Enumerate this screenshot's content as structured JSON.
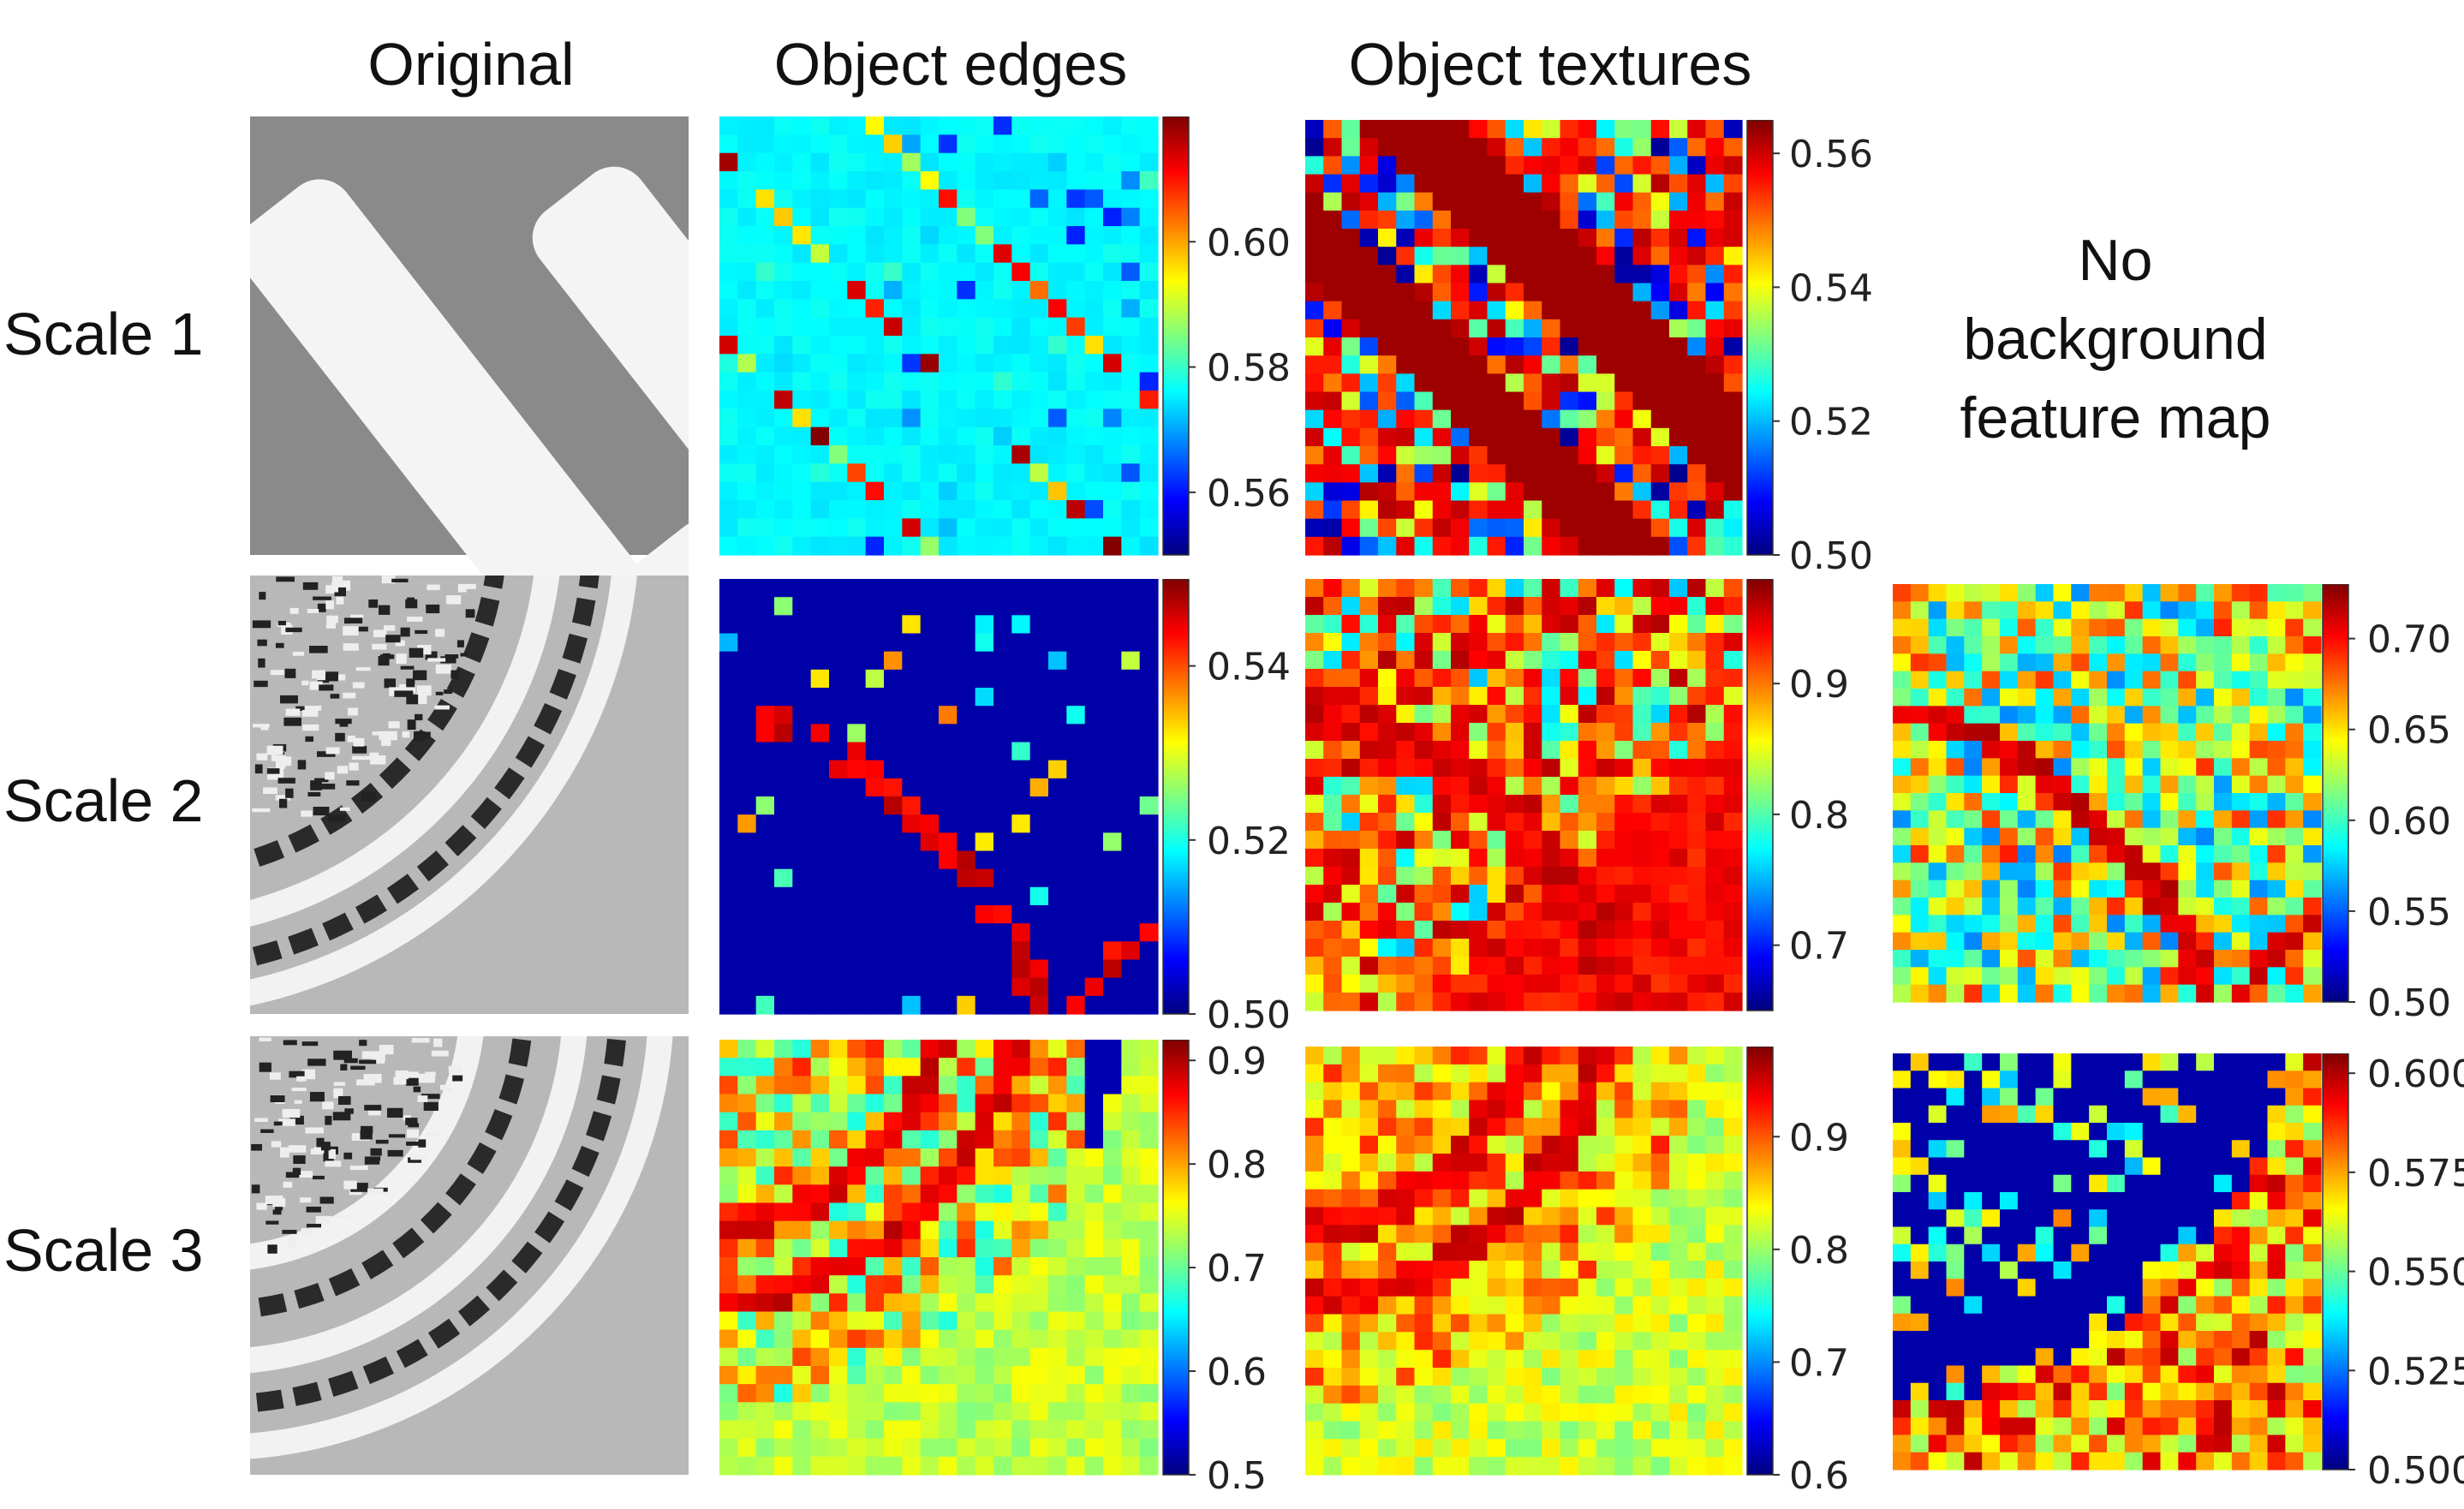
{
  "columns": [
    "Original",
    "Object edges",
    "Object textures"
  ],
  "rows": [
    "Scale 1",
    "Scale 2",
    "Scale 3"
  ],
  "no_background_note": [
    "No",
    "background",
    "feature map"
  ],
  "panels": [
    {
      "id": "s1-original",
      "row": 1,
      "kind": "original",
      "pattern": "stripes"
    },
    {
      "id": "s1-edges",
      "row": 1,
      "kind": "heatmap",
      "pattern": "s1edges",
      "seed": 11,
      "colorbar": {
        "min": 0.55,
        "max": 0.62,
        "ticks": [
          "0.60",
          "0.58",
          "0.56"
        ],
        "tick_values": [
          0.6,
          0.58,
          0.56
        ]
      }
    },
    {
      "id": "s1-textures",
      "row": 1,
      "kind": "heatmap",
      "pattern": "s1tex",
      "seed": 12,
      "colorbar": {
        "min": 0.5,
        "max": 0.565,
        "ticks": [
          "0.56",
          "0.54",
          "0.52",
          "0.50"
        ],
        "tick_values": [
          0.56,
          0.54,
          0.52,
          0.5
        ]
      }
    },
    {
      "id": "s2-original",
      "row": 2,
      "kind": "original",
      "pattern": "arcs2"
    },
    {
      "id": "s2-edges",
      "row": 2,
      "kind": "heatmap",
      "pattern": "s2edges",
      "seed": 21,
      "colorbar": {
        "min": 0.5,
        "max": 0.55,
        "ticks": [
          "0.54",
          "0.52",
          "0.50"
        ],
        "tick_values": [
          0.54,
          0.52,
          0.5
        ]
      }
    },
    {
      "id": "s2-textures",
      "row": 2,
      "kind": "heatmap",
      "pattern": "s2tex",
      "seed": 22,
      "colorbar": {
        "min": 0.65,
        "max": 0.98,
        "ticks": [
          "0.9",
          "0.8",
          "0.7"
        ],
        "tick_values": [
          0.9,
          0.8,
          0.7
        ]
      }
    },
    {
      "id": "s2-nobg",
      "row": 2,
      "kind": "heatmap",
      "pattern": "s2nobg",
      "seed": 23,
      "colorbar": {
        "min": 0.5,
        "max": 0.73,
        "ticks": [
          "0.70",
          "0.65",
          "0.60",
          "0.55",
          "0.50"
        ],
        "tick_values": [
          0.7,
          0.65,
          0.6,
          0.55,
          0.5
        ]
      }
    },
    {
      "id": "s3-original",
      "row": 3,
      "kind": "original",
      "pattern": "arcs3"
    },
    {
      "id": "s3-edges",
      "row": 3,
      "kind": "heatmap",
      "pattern": "s3edges",
      "seed": 31,
      "colorbar": {
        "min": 0.5,
        "max": 0.92,
        "ticks": [
          "0.9",
          "0.8",
          "0.7",
          "0.6",
          "0.5"
        ],
        "tick_values": [
          0.9,
          0.8,
          0.7,
          0.6,
          0.5
        ]
      }
    },
    {
      "id": "s3-textures",
      "row": 3,
      "kind": "heatmap",
      "pattern": "s3tex",
      "seed": 32,
      "colorbar": {
        "min": 0.6,
        "max": 0.98,
        "ticks": [
          "0.9",
          "0.8",
          "0.7",
          "0.6"
        ],
        "tick_values": [
          0.9,
          0.8,
          0.7,
          0.6
        ]
      }
    },
    {
      "id": "s3-nobg",
      "row": 3,
      "kind": "heatmap",
      "pattern": "s3nobg",
      "seed": 33,
      "colorbar": {
        "min": 0.5,
        "max": 0.605,
        "ticks": [
          "0.600",
          "0.575",
          "0.550",
          "0.525",
          "0.500"
        ],
        "tick_values": [
          0.6,
          0.575,
          0.55,
          0.525,
          0.5
        ]
      }
    }
  ],
  "colormap": [
    "#00007f",
    "#0000ff",
    "#007fff",
    "#00ffff",
    "#7fff7f",
    "#ffff00",
    "#ff7f00",
    "#ff0000",
    "#7f0000"
  ]
}
